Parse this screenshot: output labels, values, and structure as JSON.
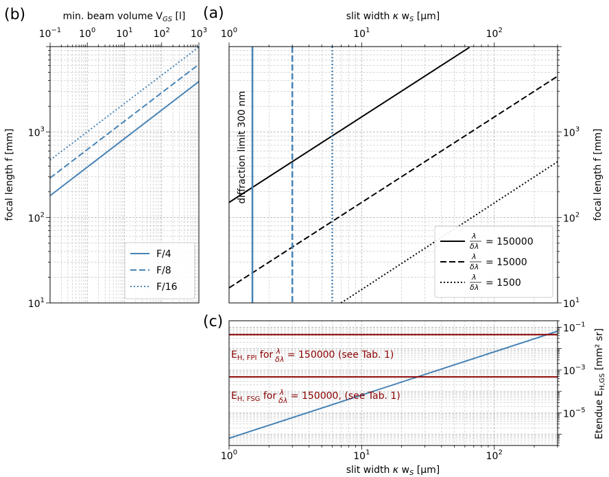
{
  "colors": {
    "steelblue": "#4682b4",
    "black": "#000000",
    "darkred": "#8b0000",
    "grid": "#b0b0b0"
  },
  "panels": {
    "b": {
      "label": "(b)",
      "top_axis_label": "min. beam volume V GS [l]",
      "top_axis_label_main": "min. beam volume V",
      "top_axis_label_sub": "GS",
      "top_axis_label_end": " [l]",
      "y_axis_label": "focal length f [mm]"
    },
    "a": {
      "label": "(a)",
      "top_axis_label": "slit width κ w_S [µm]",
      "right_axis_label": "focal length f [mm]",
      "annotation": "diffraction limit 300 nm"
    },
    "c": {
      "label": "(c)",
      "x_axis_label": "slit width κ w_S [µm]",
      "right_axis_label": "Etendue E_H,GS [mm² sr]",
      "annotation_fpi": "E_H,FPI for λ/δλ = 150000 (see Tab. 1)",
      "annotation_fsg": "E_H,FSG for λ/δλ = 150000, (see Tab. 1)"
    }
  },
  "chart_data": [
    {
      "id": "panel-b",
      "type": "line",
      "xscale": "log",
      "yscale": "log",
      "x_label": "min. beam volume V_GS [l]",
      "y_label": "focal length f [mm]",
      "xlim": [
        0.1,
        1000
      ],
      "ylim": [
        10,
        10000
      ],
      "x_ticks": [
        "10⁻¹",
        "10⁰",
        "10¹",
        "10²",
        "10³"
      ],
      "y_ticks": [
        "10¹",
        "10²",
        "10³"
      ],
      "grid": true,
      "legend_position": "lower right",
      "series": [
        {
          "name": "F/4",
          "style": "solid",
          "color": "#4682b4",
          "x": [
            0.1,
            1000
          ],
          "y": [
            180,
            3900
          ]
        },
        {
          "name": "F/8",
          "style": "dashed",
          "color": "#4682b4",
          "x": [
            0.1,
            1000
          ],
          "y": [
            290,
            6200
          ]
        },
        {
          "name": "F/16",
          "style": "dotted",
          "color": "#4682b4",
          "x": [
            0.1,
            1000
          ],
          "y": [
            470,
            9900
          ]
        }
      ]
    },
    {
      "id": "panel-a",
      "type": "line",
      "xscale": "log",
      "yscale": "log",
      "x_label": "slit width κ w_S [µm]",
      "y_label": "focal length f [mm]",
      "xlim": [
        1,
        300
      ],
      "ylim": [
        10,
        10000
      ],
      "x_ticks": [
        "10⁰",
        "10¹",
        "10²"
      ],
      "y_ticks": [
        "10¹",
        "10²",
        "10³"
      ],
      "grid": true,
      "legend_position": "lower right",
      "series": [
        {
          "name": "λ/δλ = 150000",
          "style": "solid",
          "color": "#000000",
          "x": [
            1,
            65
          ],
          "y": [
            150,
            9800
          ]
        },
        {
          "name": "λ/δλ = 15000",
          "style": "dashed",
          "color": "#000000",
          "x": [
            1,
            300
          ],
          "y": [
            15,
            4500
          ]
        },
        {
          "name": "λ/δλ = 1500",
          "style": "dotted",
          "color": "#000000",
          "x": [
            7,
            300
          ],
          "y": [
            10,
            450
          ]
        }
      ],
      "vertical_lines": [
        {
          "x": 1.5,
          "style": "solid",
          "color": "#4682b4"
        },
        {
          "x": 3,
          "style": "dashed",
          "color": "#4682b4"
        },
        {
          "x": 6,
          "style": "dotted",
          "color": "#4682b4"
        }
      ],
      "annotation": "diffraction limit 300 nm"
    },
    {
      "id": "panel-c",
      "type": "line",
      "xscale": "log",
      "yscale": "log",
      "x_label": "slit width κ w_S [µm]",
      "y_label": "Etendue E_H,GS [mm² sr]",
      "xlim": [
        1,
        300
      ],
      "ylim": [
        3e-07,
        0.2
      ],
      "x_ticks": [
        "10⁰",
        "10¹",
        "10²"
      ],
      "y_ticks": [
        "10⁻⁵",
        "10⁻³",
        "10⁻¹"
      ],
      "grid": true,
      "series": [
        {
          "color": "#4682b4",
          "style": "solid",
          "x": [
            1,
            300
          ],
          "y": [
            6.5e-07,
            0.065
          ]
        }
      ],
      "horizontal_lines": [
        {
          "y": 0.045,
          "color": "#8b0000",
          "label": "E_H,FPI for λ/δλ = 150000 (see Tab. 1)"
        },
        {
          "y": 0.00048,
          "color": "#8b0000",
          "label": "E_H,FSG for λ/δλ = 150000, (see Tab. 1)"
        }
      ]
    }
  ]
}
